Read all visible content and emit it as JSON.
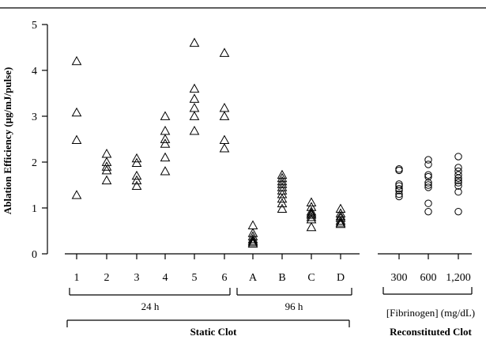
{
  "chart_data": {
    "type": "scatter",
    "ylabel": "Ablation Efficiency (μg/mJ/pulse)",
    "ylim": [
      0,
      5
    ],
    "yticks": [
      0,
      1,
      2,
      3,
      4,
      5
    ],
    "grid": false,
    "groups": [
      {
        "label": "24 h",
        "categories": [
          "1",
          "2",
          "3",
          "4",
          "5",
          "6"
        ]
      },
      {
        "label": "96 h",
        "categories": [
          "A",
          "B",
          "C",
          "D"
        ]
      },
      {
        "label": "Static Clot",
        "categories": [
          "1",
          "2",
          "3",
          "4",
          "5",
          "6",
          "A",
          "B",
          "C",
          "D"
        ]
      },
      {
        "label": "Reconstituted Clot",
        "subtitle": "[Fibrinogen] (mg/dL)",
        "categories": [
          "300",
          "600",
          "1,200"
        ]
      }
    ],
    "series": [
      {
        "category": "1",
        "marker": "triangle",
        "values": [
          4.2,
          3.08,
          2.48,
          1.28
        ]
      },
      {
        "category": "2",
        "marker": "triangle",
        "values": [
          2.18,
          2.0,
          1.9,
          1.82,
          1.6
        ]
      },
      {
        "category": "3",
        "marker": "triangle",
        "values": [
          2.08,
          1.98,
          1.7,
          1.6,
          1.48
        ]
      },
      {
        "category": "4",
        "marker": "triangle",
        "values": [
          3.0,
          2.68,
          2.5,
          2.4,
          2.1,
          1.8
        ]
      },
      {
        "category": "5",
        "marker": "triangle",
        "values": [
          4.6,
          3.6,
          3.38,
          3.18,
          3.0,
          2.68
        ]
      },
      {
        "category": "6",
        "marker": "triangle",
        "values": [
          4.38,
          3.18,
          3.0,
          2.48,
          2.3
        ]
      },
      {
        "category": "A",
        "marker": "triangle",
        "values": [
          0.62,
          0.45,
          0.38,
          0.32,
          0.28,
          0.25,
          0.22
        ]
      },
      {
        "category": "B",
        "marker": "triangle",
        "values": [
          1.72,
          1.65,
          1.58,
          1.52,
          1.45,
          1.38,
          1.3,
          1.2,
          1.1,
          0.98
        ]
      },
      {
        "category": "C",
        "marker": "triangle",
        "values": [
          1.12,
          1.02,
          0.92,
          0.88,
          0.85,
          0.8,
          0.75,
          0.58
        ]
      },
      {
        "category": "D",
        "marker": "triangle",
        "values": [
          0.98,
          0.88,
          0.82,
          0.78,
          0.72,
          0.68,
          0.65
        ]
      },
      {
        "category": "300",
        "marker": "circle",
        "values": [
          1.85,
          1.82,
          1.52,
          1.48,
          1.42,
          1.38,
          1.3,
          1.25
        ]
      },
      {
        "category": "600",
        "marker": "circle",
        "values": [
          2.05,
          1.95,
          1.72,
          1.68,
          1.55,
          1.5,
          1.45,
          1.1,
          0.92
        ]
      },
      {
        "category": "1,200",
        "marker": "circle",
        "values": [
          2.12,
          1.88,
          1.8,
          1.72,
          1.65,
          1.6,
          1.55,
          1.48,
          1.35,
          0.92
        ]
      }
    ]
  }
}
